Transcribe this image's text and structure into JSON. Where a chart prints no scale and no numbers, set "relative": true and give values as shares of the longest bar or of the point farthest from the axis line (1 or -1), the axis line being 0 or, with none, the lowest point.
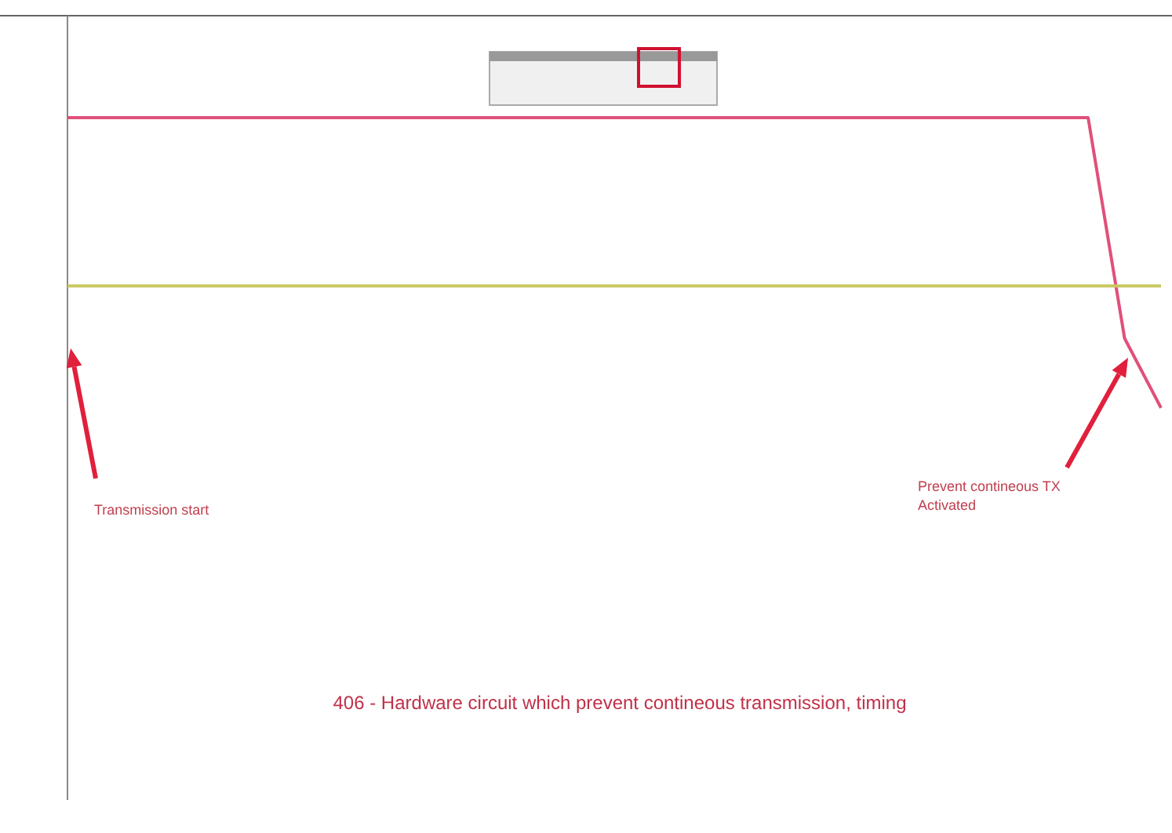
{
  "chart_data": {
    "type": "line",
    "relative": true,
    "title": "406 - Hardware circuit which prevent contineous transmission, timing",
    "categories": [
      null,
      null,
      null,
      null,
      null,
      null,
      null,
      null,
      null,
      null,
      null,
      null,
      null,
      null,
      null,
      null,
      null,
      null,
      null,
      null,
      null,
      null,
      null,
      null,
      null,
      null,
      null,
      null,
      null,
      null,
      null
    ],
    "series": [
      {
        "color": "#e0507a",
        "values": [
          1,
          1,
          1,
          1,
          1,
          1,
          1,
          1,
          1,
          1,
          1,
          1,
          1,
          1,
          1,
          1,
          1,
          1,
          1,
          1,
          1,
          1,
          1,
          1,
          1,
          1,
          1,
          1,
          1,
          0.24,
          0
        ]
      },
      {
        "color": "#c8c860",
        "values": [
          0.42,
          0.42,
          0.42,
          0.42,
          0.42,
          0.42,
          0.42,
          0.42,
          0.42,
          0.42,
          0.42,
          0.42,
          0.42,
          0.42,
          0.42,
          0.42,
          0.42,
          0.42,
          0.42,
          0.42,
          0.42,
          0.42,
          0.42,
          0.42,
          0.42,
          0.42,
          0.42,
          0.42,
          0.42,
          0.42,
          0.42
        ]
      }
    ],
    "annotations": [
      "Transmission start",
      "Prevent contineous TX Activated"
    ]
  }
}
